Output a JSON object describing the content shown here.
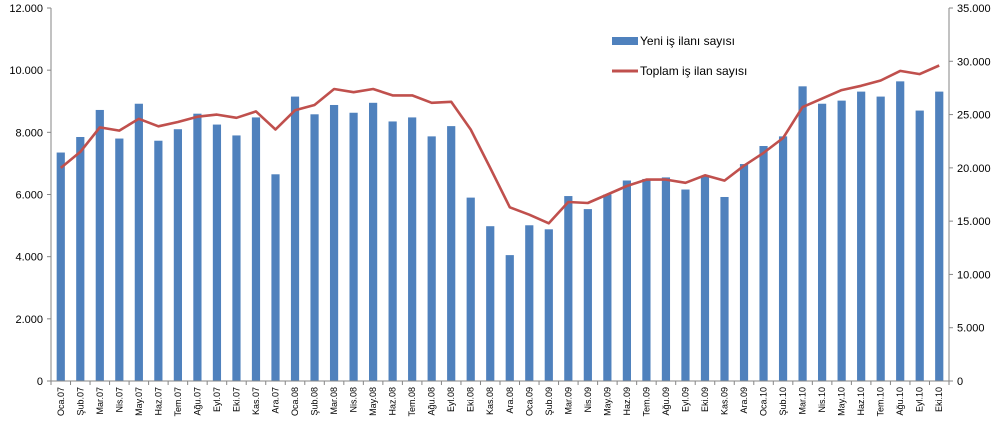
{
  "chart_data": {
    "type": "bar+line",
    "categories": [
      "Oca.07",
      "Şub.07",
      "Mar.07",
      "Nis.07",
      "May.07",
      "Haz.07",
      "Tem.07",
      "Ağu.07",
      "Eyl.07",
      "Eki.07",
      "Kas.07",
      "Ara.07",
      "Oca.08",
      "Şub.08",
      "Mar.08",
      "Nis.08",
      "May.08",
      "Haz.08",
      "Tem.08",
      "Ağu.08",
      "Eyl.08",
      "Eki.08",
      "Kas.08",
      "Ara.08",
      "Oca.09",
      "Şub.09",
      "Mar.09",
      "Nis.09",
      "May.09",
      "Haz.09",
      "Tem.09",
      "Ağu.09",
      "Eyl.09",
      "Eki.09",
      "Kas.09",
      "Ara.09",
      "Oca.10",
      "Şub.10",
      "Mar.10",
      "Nis.10",
      "May.10",
      "Haz.10",
      "Tem.10",
      "Ağu.10",
      "Eyl.10",
      "Eki.10"
    ],
    "series": [
      {
        "name": "Yeni iş ilanı sayısı",
        "type": "bar",
        "axis": "left",
        "color": "#4F81BD",
        "values": [
          7350,
          7850,
          8720,
          7800,
          8920,
          7730,
          8100,
          8600,
          8250,
          7900,
          8480,
          6650,
          9150,
          8580,
          8880,
          8630,
          8950,
          8350,
          8480,
          7870,
          8200,
          5900,
          4980,
          4050,
          5010,
          4880,
          5950,
          5530,
          6000,
          6450,
          6500,
          6550,
          6160,
          6590,
          5920,
          6980,
          7560,
          7870,
          9480,
          8920,
          9020,
          9310,
          9150,
          9640,
          8700,
          9310
        ]
      },
      {
        "name": "Toplam iş ilan sayısı",
        "type": "line",
        "axis": "right",
        "color": "#C0504D",
        "values": [
          20000,
          21500,
          23800,
          23500,
          24600,
          23900,
          24300,
          24800,
          25000,
          24700,
          25300,
          23600,
          25400,
          25900,
          27400,
          27100,
          27400,
          26800,
          26800,
          26100,
          26200,
          23600,
          20000,
          16300,
          15600,
          14800,
          16800,
          16700,
          17500,
          18300,
          18900,
          18900,
          18600,
          19300,
          18800,
          20200,
          21400,
          22800,
          25700,
          26500,
          27300,
          27700,
          28200,
          29100,
          28800,
          29600
        ]
      }
    ],
    "y_left": {
      "min": 0,
      "max": 12000,
      "step": 2000,
      "tick_labels": [
        "0",
        "2.000",
        "4.000",
        "6.000",
        "8.000",
        "10.000",
        "12.000"
      ]
    },
    "y_right": {
      "min": 0,
      "max": 35000,
      "step": 5000,
      "tick_labels": [
        "0",
        "5.000",
        "10.000",
        "15.000",
        "20.000",
        "25.000",
        "30.000",
        "35.000"
      ]
    },
    "legend": {
      "placement": "top-right",
      "bar_label": "Yeni iş ilanı sayısı",
      "line_label": "Toplam iş ilan sayısı"
    },
    "grid": false,
    "title": ""
  }
}
